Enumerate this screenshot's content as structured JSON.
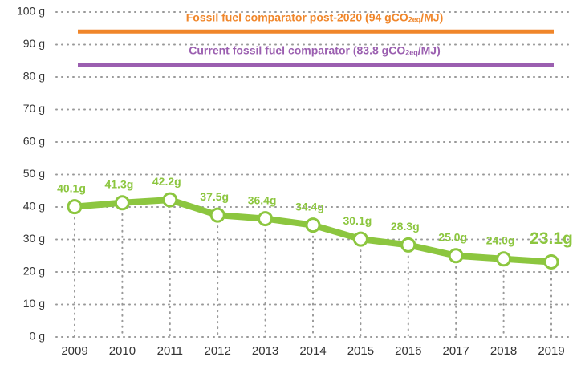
{
  "chart_data": {
    "type": "line",
    "categories": [
      "2009",
      "2010",
      "2011",
      "2012",
      "2013",
      "2014",
      "2015",
      "2016",
      "2017",
      "2018",
      "2019"
    ],
    "series": [
      {
        "color": "#8cc63f",
        "values": [
          40.1,
          41.3,
          42.2,
          37.5,
          36.4,
          34.4,
          30.1,
          28.3,
          25.0,
          24.0,
          23.1
        ],
        "value_labels": [
          "40.1g",
          "41.3g",
          "42.2g",
          "37.5g",
          "36.4g",
          "34.4g",
          "30.1g",
          "28.3g",
          "25.0g",
          "24.0g",
          "23.1g"
        ]
      }
    ],
    "ylim": [
      0,
      100
    ],
    "yticks": [
      {
        "value": 0,
        "label": "0 g"
      },
      {
        "value": 10,
        "label": "10 g"
      },
      {
        "value": 20,
        "label": "20 g"
      },
      {
        "value": 30,
        "label": "30 g"
      },
      {
        "value": 40,
        "label": "40 g"
      },
      {
        "value": 50,
        "label": "50 g"
      },
      {
        "value": 60,
        "label": "60 g"
      },
      {
        "value": 70,
        "label": "70 g"
      },
      {
        "value": 80,
        "label": "80 g"
      },
      {
        "value": 90,
        "label": "90 g"
      },
      {
        "value": 100,
        "label": "100 g"
      }
    ],
    "grid": true,
    "reference_lines": [
      {
        "value": 94,
        "color": "#f0862a",
        "text": "Fossil fuel comparator post-2020 (94 gCO",
        "subscript": "2eq",
        "text_after": "/MJ)"
      },
      {
        "value": 83.8,
        "color": "#9b5fb0",
        "text": "Current fossil fuel comparator (83.8 gCO",
        "subscript": "2eq",
        "text_after": "/MJ)"
      }
    ]
  }
}
